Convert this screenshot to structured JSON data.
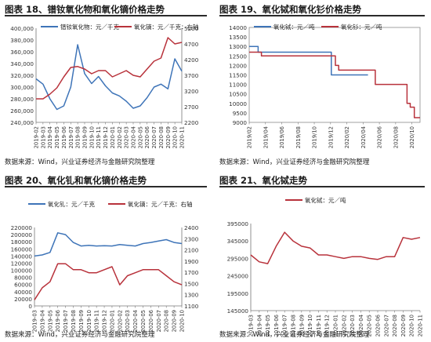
{
  "charts": [
    {
      "id": "c18",
      "title": "图表 18、镨钕氧化物和氧化镝价格走势",
      "source": "数据来源：Wind，兴业证券经济与金融研究院整理",
      "legend": [
        "镨钕氧化物：元／千克",
        "氧化镝：元／千克：右轴"
      ]
    },
    {
      "id": "c19",
      "title": "图表 19、氧化铽和氧化钐价格走势",
      "source": "数据来源：Wind，兴业证券经济与金融研究院整理",
      "legend": [
        "氧化铽：元／吨",
        "氧化钐：元／吨"
      ]
    },
    {
      "id": "c20",
      "title": "图表 20、氧化钆和氧化镝价格走势",
      "source": "数据来源：Wind，兴业证券经济与金融研究院整理",
      "legend": [
        "氧化钆：元／千克",
        "氧化镝：元／千克：右轴"
      ]
    },
    {
      "id": "c21",
      "title": "图表 21、氧化铽走势",
      "source": "数据来源：Wind，兴业证券经济与金融研究院整理",
      "legend": [
        "氧化铽：元／吨"
      ]
    }
  ],
  "chart_data": [
    {
      "type": "line",
      "id": "c18",
      "x_ticks": [
        "2019-02",
        "2019-03",
        "2019-04",
        "2019-05",
        "2019-06",
        "2019-07",
        "2019-08",
        "2019-09",
        "2019-10",
        "2019-11",
        "2019-12",
        "2020-01",
        "2020-02",
        "2020-03",
        "2020-04",
        "2020-05",
        "2020-06",
        "2020-07",
        "2020-08",
        "2020-09",
        "2020-10",
        "2020-11"
      ],
      "ylim": [
        240000,
        400000
      ],
      "yticks": [
        "240,000",
        "260,000",
        "280,000",
        "300,000",
        "320,000",
        "340,000",
        "360,000",
        "380,000",
        "400,000"
      ],
      "y2lim": [
        2200,
        5200
      ],
      "y2ticks": [
        "2200",
        "2700",
        "3200",
        "3700",
        "4200",
        "4700",
        "5200"
      ],
      "series": [
        {
          "name": "镨钕氧化物：元／千克",
          "axis": "left",
          "color": "#3e74b8",
          "values": [
            314000,
            305000,
            280000,
            262000,
            268000,
            300000,
            372000,
            323000,
            306000,
            318000,
            302000,
            290000,
            285000,
            276000,
            264000,
            268000,
            282000,
            300000,
            305000,
            297000,
            348000,
            327000
          ]
        },
        {
          "name": "氧化镝：元／千克：右轴",
          "axis": "right",
          "color": "#b8323b",
          "values": [
            2950,
            2950,
            3100,
            3300,
            3650,
            3950,
            3980,
            3900,
            3750,
            3850,
            3850,
            3650,
            3750,
            3850,
            3700,
            3650,
            3900,
            4150,
            4250,
            4900,
            4700,
            4750
          ]
        }
      ]
    },
    {
      "type": "line",
      "id": "c19",
      "x_ticks": [
        "2019/02",
        "2019/04",
        "2019/06",
        "2019/08",
        "2019/10",
        "2019/12",
        "2020/02",
        "2020/04",
        "2020/06",
        "2020/08",
        "2020/10"
      ],
      "ylim": [
        9000,
        14000
      ],
      "yticks": [
        "9000",
        "9500",
        "10000",
        "10500",
        "11000",
        "11500",
        "12000",
        "12500",
        "13000",
        "13500",
        "14000"
      ],
      "series": [
        {
          "name": "氧化铽：元／吨",
          "color": "#3e74b8",
          "x": [
            0,
            0.9,
            1.1,
            2,
            4,
            6,
            8,
            9.6,
            10.1,
            10.5,
            11.5,
            13.6,
            14.6
          ],
          "values": [
            13000,
            13000,
            12700,
            12700,
            12700,
            12700,
            12700,
            12700,
            11500,
            11500,
            11500,
            11500,
            11500
          ]
        },
        {
          "name": "氧化钐：元／吨",
          "color": "#b8323b",
          "x": [
            0,
            1,
            1.5,
            2,
            4,
            6,
            8,
            10,
            10.6,
            11,
            11.8,
            12.5,
            14.9,
            15.5,
            16.6,
            18.8,
            19.4,
            19.8,
            20.3,
            21
          ],
          "values": [
            12700,
            12700,
            12500,
            12500,
            12500,
            12500,
            12500,
            12500,
            12000,
            11750,
            11750,
            11750,
            11750,
            11000,
            11000,
            11000,
            10000,
            9800,
            9250,
            9250
          ]
        }
      ]
    },
    {
      "type": "line",
      "id": "c20",
      "x_ticks": [
        "2019-03",
        "2019-04",
        "2019-05",
        "2019-06",
        "2019-07",
        "2019-08",
        "2019-09",
        "2019-10",
        "2019-11",
        "2019-12",
        "2020-01",
        "2020-02",
        "2020-03",
        "2020-04",
        "2020-05",
        "2020-06",
        "2020-07",
        "2020-08",
        "2020-09",
        "2020-10"
      ],
      "ylim": [
        0,
        220000
      ],
      "yticks": [
        "0",
        "20000",
        "40000",
        "60000",
        "80000",
        "100000",
        "120000",
        "140000",
        "160000",
        "180000",
        "200000",
        "220000"
      ],
      "y2lim": [
        1100,
        2400
      ],
      "y2ticks": [
        "1100",
        "1300",
        "1500",
        "1700",
        "1900",
        "2100",
        "2300",
        "2400"
      ],
      "series": [
        {
          "name": "氧化钆：元／千克",
          "axis": "left",
          "color": "#3e74b8",
          "values": [
            140000,
            143000,
            150000,
            205000,
            200000,
            178000,
            168000,
            170000,
            168000,
            169000,
            168000,
            172000,
            170000,
            168000,
            175000,
            178000,
            182000,
            186000,
            178000,
            175000
          ]
        },
        {
          "name": "氧化镝：元／千克：右轴",
          "axis": "right",
          "color": "#b8323b",
          "values": [
            1200,
            1400,
            1500,
            1800,
            1800,
            1700,
            1700,
            1650,
            1650,
            1700,
            1750,
            1450,
            1600,
            1650,
            1700,
            1700,
            1700,
            1600,
            1500,
            1450
          ]
        }
      ]
    },
    {
      "type": "line",
      "id": "c21",
      "x_ticks": [
        "2019-03",
        "2019-04",
        "2019-05",
        "2019-06",
        "2019-07",
        "2019-08",
        "2019-09",
        "2019-10",
        "2019-11",
        "2019-12",
        "2020-01",
        "2020-02",
        "2020-03",
        "2020-04",
        "2020-05",
        "2020-06",
        "2020-07",
        "2020-08",
        "2020-09",
        "2020-10",
        "2020-11"
      ],
      "ylim": [
        145000,
        395000
      ],
      "yticks": [
        "145000",
        "195000",
        "245000",
        "295000",
        "345000",
        "395000"
      ],
      "series": [
        {
          "name": "氧化铽：元／吨",
          "color": "#b8323b",
          "values": [
            305000,
            285000,
            280000,
            330000,
            370000,
            345000,
            330000,
            325000,
            305000,
            305000,
            300000,
            295000,
            300000,
            300000,
            295000,
            292000,
            300000,
            300000,
            355000,
            350000,
            355000
          ]
        }
      ]
    }
  ]
}
